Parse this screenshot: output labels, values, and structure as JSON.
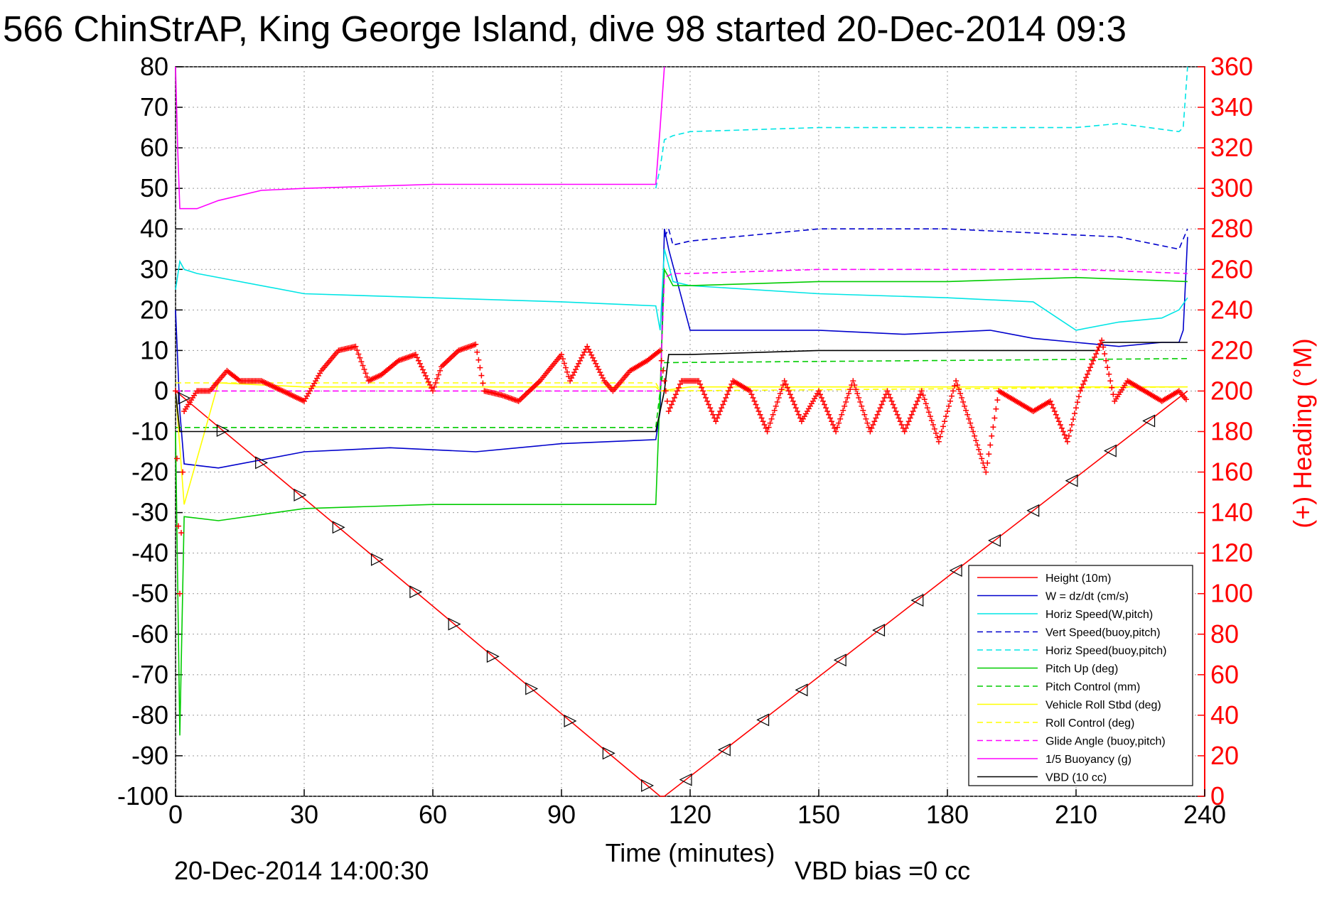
{
  "chart_data": {
    "type": "line",
    "title": "566 ChinStrAP, King George Island, dive 98 started 20-Dec-2014 09:3",
    "xlabel": "Time (minutes)",
    "ylabel": "",
    "y2label": "(+) Heading (°M)",
    "xlim": [
      0,
      240
    ],
    "ylim": [
      -100,
      80
    ],
    "y2lim": [
      0,
      360
    ],
    "x_ticks": [
      "0",
      "30",
      "60",
      "90",
      "120",
      "150",
      "180",
      "210",
      "240"
    ],
    "y_ticks": [
      "80",
      "70",
      "60",
      "50",
      "40",
      "30",
      "20",
      "10",
      "0",
      "-10",
      "-20",
      "-30",
      "-40",
      "-50",
      "-60",
      "-70",
      "-80",
      "-90",
      "-100"
    ],
    "y2_ticks": [
      "360",
      "340",
      "320",
      "300",
      "280",
      "260",
      "240",
      "220",
      "200",
      "180",
      "160",
      "140",
      "120",
      "100",
      "80",
      "60",
      "40",
      "20",
      "0"
    ],
    "grid": true,
    "legend_position": "bottom-right",
    "footer_left": "20-Dec-2014 14:00:30",
    "footer_right": "VBD bias =0 cc",
    "colors": {
      "axis_right": "#ff0000",
      "axis_left": "#000000"
    },
    "series": [
      {
        "name": "Height (10m)",
        "color": "#ff0000",
        "dash": "solid",
        "x": [
          0,
          113,
          114,
          236
        ],
        "y": [
          0,
          -100,
          -100,
          0
        ]
      },
      {
        "name": "W = dz/dt (cm/s)",
        "color": "#0000cc",
        "dash": "solid",
        "x": [
          0,
          1,
          2,
          10,
          30,
          50,
          70,
          90,
          112,
          113,
          114,
          115,
          120,
          150,
          170,
          190,
          200,
          210,
          220,
          230,
          234,
          235,
          236
        ],
        "y": [
          20,
          -5,
          -18,
          -19,
          -15,
          -14,
          -15,
          -13,
          -12,
          -5,
          40,
          35,
          15,
          15,
          14,
          15,
          13,
          12,
          11,
          12,
          12,
          15,
          38
        ]
      },
      {
        "name": "Horiz Speed(W,pitch)",
        "color": "#00e5e5",
        "dash": "solid",
        "x": [
          0,
          1,
          2,
          5,
          30,
          60,
          90,
          112,
          113,
          114,
          116,
          120,
          150,
          180,
          200,
          210,
          220,
          230,
          234,
          236
        ],
        "y": [
          25,
          32,
          30,
          29,
          24,
          23,
          22,
          21,
          15,
          35,
          27,
          26,
          24,
          23,
          22,
          15,
          17,
          18,
          20,
          23
        ]
      },
      {
        "name": "Vert Speed(buoy,pitch)",
        "color": "#0000cc",
        "dash": "dashed",
        "x": [
          114,
          115,
          116,
          120,
          150,
          180,
          200,
          220,
          234,
          236
        ],
        "y": [
          38,
          40,
          36,
          37,
          40,
          40,
          39,
          38,
          35,
          40
        ]
      },
      {
        "name": "Horiz Speed(buoy,pitch)",
        "color": "#00e5e5",
        "dash": "dashed",
        "x": [
          112,
          113,
          114,
          116,
          120,
          150,
          180,
          210,
          220,
          234,
          235,
          236
        ],
        "y": [
          50,
          55,
          62,
          63,
          64,
          65,
          65,
          65,
          66,
          64,
          65,
          80
        ]
      },
      {
        "name": "Pitch Up (deg)",
        "color": "#00cc00",
        "dash": "solid",
        "x": [
          0,
          1,
          2,
          10,
          30,
          60,
          90,
          112,
          113,
          114,
          116,
          120,
          150,
          180,
          210,
          236
        ],
        "y": [
          -10,
          -85,
          -31,
          -32,
          -29,
          -28,
          -28,
          -28,
          0,
          30,
          26,
          26,
          27,
          27,
          28,
          27
        ]
      },
      {
        "name": "Pitch Control (mm)",
        "color": "#00cc00",
        "dash": "dashed",
        "x": [
          0,
          112,
          113,
          114,
          236
        ],
        "y": [
          -9,
          -9,
          0,
          7,
          8
        ]
      },
      {
        "name": "Vehicle Roll Stbd (deg)",
        "color": "#ffff00",
        "dash": "solid",
        "x": [
          0,
          2,
          10,
          30,
          60,
          90,
          112,
          113,
          120,
          150,
          180,
          210,
          236
        ],
        "y": [
          0,
          -28,
          2,
          1,
          1,
          1,
          1,
          0,
          1,
          1,
          1,
          1,
          1
        ]
      },
      {
        "name": "Roll Control (deg)",
        "color": "#ffff00",
        "dash": "dashed",
        "x": [
          0,
          112,
          113,
          236
        ],
        "y": [
          2,
          2,
          0,
          1
        ]
      },
      {
        "name": "Glide Angle (buoy,pitch)",
        "color": "#ff00ff",
        "dash": "dashed",
        "x": [
          0,
          112,
          113,
          114,
          116,
          120,
          150,
          180,
          210,
          236
        ],
        "y": [
          0,
          0,
          0,
          28,
          29,
          29,
          30,
          30,
          30,
          29
        ]
      },
      {
        "name": "1/5 Buoyancy (g)",
        "color": "#ff00ff",
        "dash": "solid",
        "x": [
          0,
          0.5,
          1,
          5,
          10,
          20,
          30,
          60,
          90,
          112,
          113,
          114
        ],
        "y": [
          80,
          60,
          45,
          45,
          47,
          49.5,
          50,
          51,
          51,
          51,
          65,
          80
        ]
      },
      {
        "name": "VBD (10 cc)",
        "color": "#000000",
        "dash": "solid",
        "x": [
          0,
          1,
          2,
          112,
          114,
          115,
          120,
          150,
          210,
          215,
          216,
          236
        ],
        "y": [
          0,
          -10,
          -10,
          -10,
          0,
          9,
          9,
          10,
          10,
          10,
          12,
          12
        ]
      }
    ],
    "heading_series": {
      "name": "Heading",
      "color": "#ff0000",
      "marker": "+",
      "x": [
        0,
        1,
        2,
        5,
        8,
        12,
        15,
        20,
        25,
        30,
        34,
        38,
        42,
        45,
        48,
        52,
        56,
        60,
        62,
        66,
        70,
        72,
        76,
        80,
        85,
        90,
        92,
        96,
        100,
        102,
        106,
        110,
        113,
        115,
        118,
        122,
        126,
        130,
        134,
        138,
        142,
        146,
        150,
        154,
        158,
        162,
        166,
        170,
        174,
        178,
        182,
        186,
        189,
        192,
        196,
        200,
        204,
        208,
        211,
        214,
        216,
        219,
        222,
        226,
        230,
        234,
        236
      ],
      "y": [
        200,
        100,
        190,
        200,
        200,
        210,
        205,
        205,
        200,
        195,
        210,
        220,
        222,
        205,
        208,
        215,
        218,
        200,
        212,
        220,
        223,
        200,
        198,
        195,
        205,
        218,
        205,
        222,
        205,
        200,
        210,
        215,
        220,
        190,
        205,
        205,
        185,
        205,
        200,
        180,
        205,
        185,
        200,
        180,
        205,
        180,
        200,
        180,
        200,
        175,
        205,
        180,
        160,
        200,
        195,
        190,
        195,
        175,
        200,
        215,
        225,
        195,
        205,
        200,
        195,
        200,
        195
      ]
    }
  }
}
